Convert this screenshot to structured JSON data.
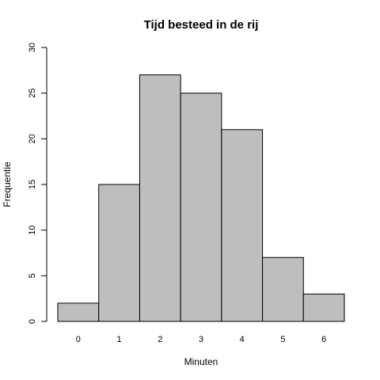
{
  "chart_data": {
    "type": "bar",
    "title": "Tijd besteed in de rij",
    "xlabel": "Minuten",
    "ylabel": "Frequentie",
    "categories": [
      "0",
      "1",
      "2",
      "3",
      "4",
      "5",
      "6"
    ],
    "values": [
      2,
      15,
      27,
      25,
      21,
      7,
      3
    ],
    "ylim": [
      0,
      30
    ],
    "yticks": [
      "0",
      "5",
      "10",
      "15",
      "20",
      "25",
      "30"
    ],
    "grid": false,
    "colors": {
      "bar_fill": "#bebebe",
      "bar_stroke": "#000000"
    }
  }
}
